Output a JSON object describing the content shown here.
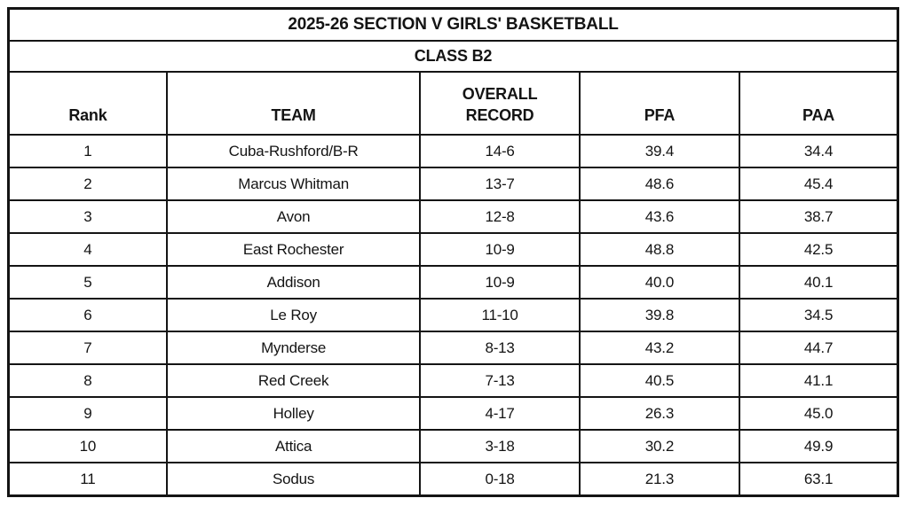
{
  "colors": {
    "border": "#141414",
    "text": "#141414",
    "background": "#ffffff"
  },
  "chart_data": {
    "type": "table",
    "title": "2025-26 SECTION V GIRLS' BASKETBALL",
    "subtitle": "CLASS B2",
    "columns": [
      "Rank",
      "TEAM",
      "OVERALL RECORD",
      "PFA",
      "PAA"
    ],
    "rows": [
      {
        "rank": "1",
        "team": "Cuba-Rushford/B-R",
        "record": "14-6",
        "pfa": "39.4",
        "paa": "34.4"
      },
      {
        "rank": "2",
        "team": "Marcus Whitman",
        "record": "13-7",
        "pfa": "48.6",
        "paa": "45.4"
      },
      {
        "rank": "3",
        "team": "Avon",
        "record": "12-8",
        "pfa": "43.6",
        "paa": "38.7"
      },
      {
        "rank": "4",
        "team": "East Rochester",
        "record": "10-9",
        "pfa": "48.8",
        "paa": "42.5"
      },
      {
        "rank": "5",
        "team": "Addison",
        "record": "10-9",
        "pfa": "40.0",
        "paa": "40.1"
      },
      {
        "rank": "6",
        "team": "Le Roy",
        "record": "11-10",
        "pfa": "39.8",
        "paa": "34.5"
      },
      {
        "rank": "7",
        "team": "Mynderse",
        "record": "8-13",
        "pfa": "43.2",
        "paa": "44.7"
      },
      {
        "rank": "8",
        "team": "Red Creek",
        "record": "7-13",
        "pfa": "40.5",
        "paa": "41.1"
      },
      {
        "rank": "9",
        "team": "Holley",
        "record": "4-17",
        "pfa": "26.3",
        "paa": "45.0"
      },
      {
        "rank": "10",
        "team": "Attica",
        "record": "3-18",
        "pfa": "30.2",
        "paa": "49.9"
      },
      {
        "rank": "11",
        "team": "Sodus",
        "record": "0-18",
        "pfa": "21.3",
        "paa": "63.1"
      }
    ]
  }
}
